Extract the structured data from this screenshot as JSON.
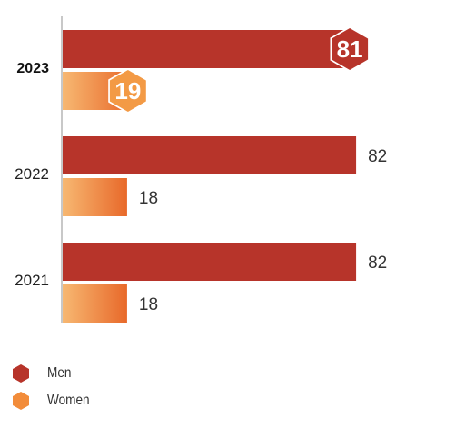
{
  "chart_data": {
    "type": "bar",
    "orientation": "horizontal",
    "categories": [
      "2023",
      "2022",
      "2021"
    ],
    "highlight_category": "2023",
    "series": [
      {
        "name": "Men",
        "values": [
          81,
          82,
          82
        ],
        "color": "#b7342a"
      },
      {
        "name": "Women",
        "values": [
          19,
          18,
          18
        ],
        "color_start": "#f7b872",
        "color_end": "#e8692a"
      }
    ],
    "data_labels": [
      [
        "81",
        "82",
        "82"
      ],
      [
        "19",
        "18",
        "18"
      ]
    ],
    "xlim": [
      0,
      100
    ],
    "grid": false,
    "legend_position": "bottom-left"
  },
  "legend": {
    "items": [
      {
        "label": "Men",
        "icon": "hexagon",
        "color": "#b7342a"
      },
      {
        "label": "Women",
        "icon": "hexagon",
        "color": "#f28c3a"
      }
    ]
  }
}
